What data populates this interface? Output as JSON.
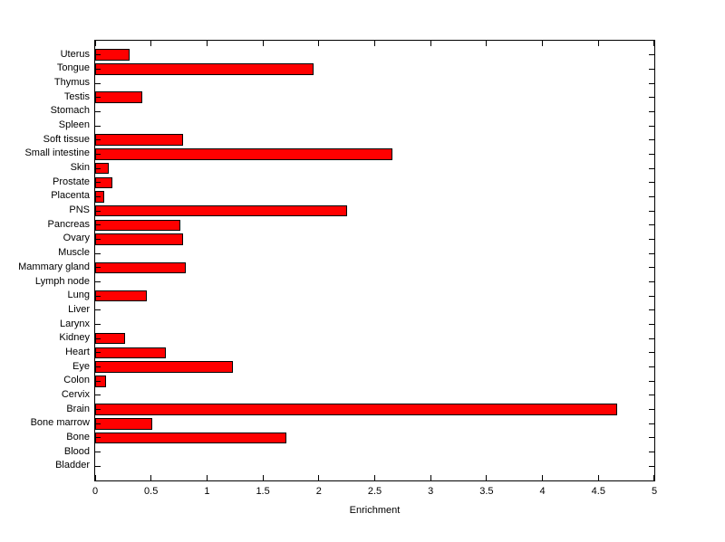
{
  "chart_data": {
    "type": "bar",
    "orientation": "horizontal",
    "title": "",
    "xlabel": "Enrichment",
    "ylabel": "",
    "categories_top_to_bottom": [
      "Uterus",
      "Tongue",
      "Thymus",
      "Testis",
      "Stomach",
      "Spleen",
      "Soft tissue",
      "Small intestine",
      "Skin",
      "Prostate",
      "Placenta",
      "PNS",
      "Pancreas",
      "Ovary",
      "Muscle",
      "Mammary gland",
      "Lymph node",
      "Lung",
      "Liver",
      "Larynx",
      "Kidney",
      "Heart",
      "Eye",
      "Colon",
      "Cervix",
      "Brain",
      "Bone marrow",
      "Bone",
      "Blood",
      "Bladder"
    ],
    "values": [
      0.31,
      1.95,
      0,
      0.42,
      0,
      0,
      0.79,
      2.66,
      0.12,
      0.15,
      0.08,
      2.25,
      0.76,
      0.79,
      0,
      0.81,
      0,
      0.46,
      0,
      0,
      0.27,
      0.63,
      1.23,
      0.1,
      0,
      4.67,
      0.51,
      1.71,
      0,
      0
    ],
    "xlim": [
      0,
      5
    ],
    "xticks": [
      "0",
      "0.5",
      "1",
      "1.5",
      "2",
      "2.5",
      "3",
      "3.5",
      "4",
      "4.5",
      "5"
    ],
    "grid": "off",
    "legend": "none",
    "bar_color": "#ff0000",
    "bar_edge_color": "#000000",
    "axis_color": "#000000",
    "background_color": "#ffffff"
  }
}
